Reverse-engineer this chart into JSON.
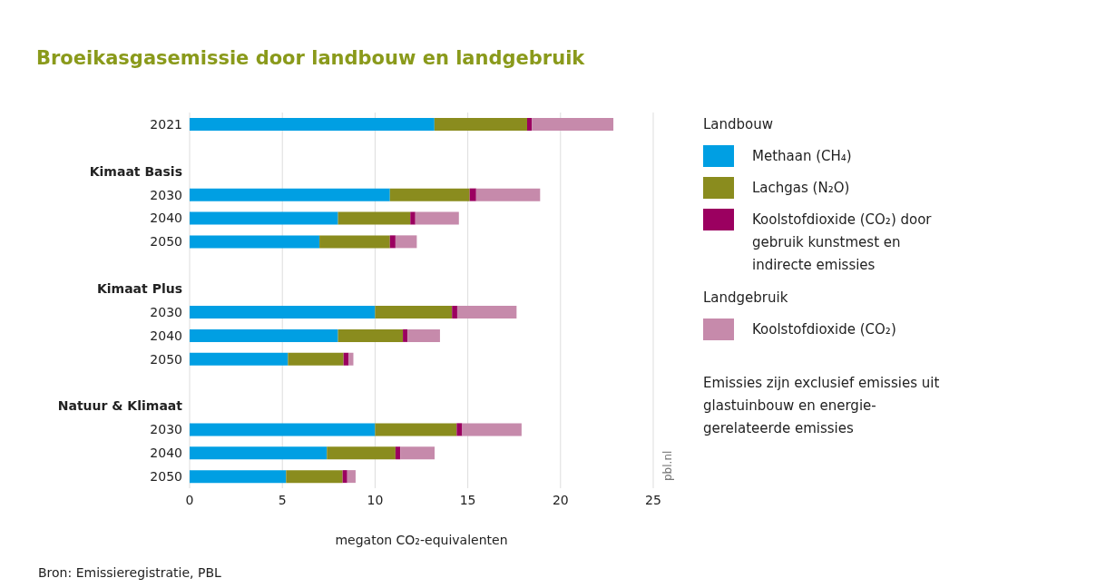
{
  "chart_data": {
    "type": "bar",
    "orientation": "horizontal",
    "stacked": true,
    "title": "Broeikasgasemissie door landbouw en landgebruik",
    "xlabel": "megaton CO₂-equivalenten",
    "legend_title": "Landbouw",
    "legend": "right",
    "grid": "x",
    "categories": [
      "2021",
      null,
      "Kimaat Basis",
      "2030",
      "2040",
      "2050",
      null,
      "Kimaat Plus",
      "2030",
      "2040",
      "2050",
      null,
      "Natuur & Klimaat",
      "2030",
      "2040",
      "2050"
    ],
    "series": [
      {
        "name": "Methaan (CH₄)",
        "color": "#009fe3",
        "values": [
          13.2,
          null,
          null,
          10.8,
          8.0,
          7.0,
          null,
          null,
          10.0,
          8.0,
          5.3,
          null,
          null,
          10.0,
          7.4,
          5.2
        ]
      },
      {
        "name": "Lachgas (N₂O)",
        "color": "#8a8c1e",
        "values": [
          5.0,
          null,
          null,
          4.3,
          3.9,
          3.8,
          null,
          null,
          4.15,
          3.5,
          3.0,
          null,
          null,
          4.4,
          3.7,
          3.05
        ]
      },
      {
        "name": "Koolstofdioxide (CO₂) door gebruik kunstmest en indirecte emissies",
        "color": "#9b0060",
        "values": [
          0.25,
          null,
          null,
          0.35,
          0.27,
          0.3,
          null,
          null,
          0.28,
          0.25,
          0.27,
          null,
          null,
          0.3,
          0.26,
          0.25
        ]
      },
      {
        "name": "Koolstofdioxide (CO₂)",
        "color": "#c68aab",
        "values": [
          4.4,
          null,
          null,
          3.45,
          2.35,
          1.15,
          null,
          null,
          3.2,
          1.75,
          0.26,
          null,
          null,
          3.2,
          1.85,
          0.45
        ]
      }
    ],
    "xlim": [
      0,
      25
    ],
    "xticks": [
      0,
      5,
      10,
      15,
      20,
      25
    ],
    "annotations": [
      "Landgebruik",
      "Emissies zijn exclusief emissies uit glastuinbouw en energie-gerelateerde emissies",
      "pbl.nl",
      "Bron: Emissieregistratie, PBL"
    ]
  }
}
